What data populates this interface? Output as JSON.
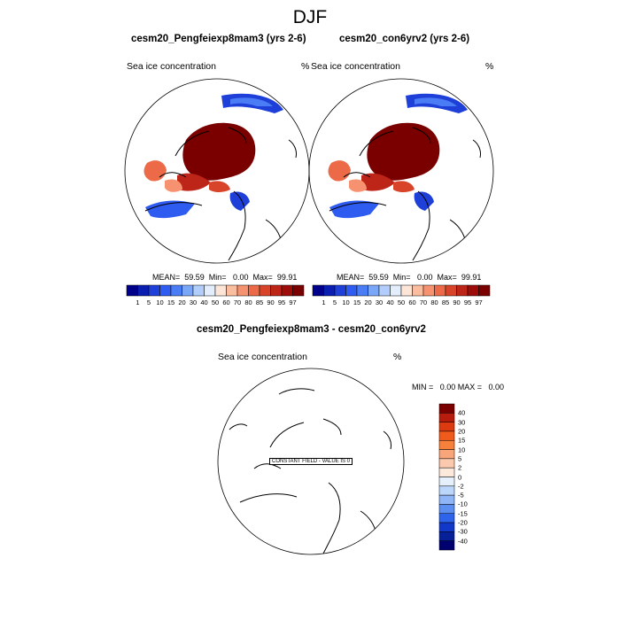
{
  "title": "DJF",
  "panels": [
    {
      "title": "cesm20_Pengfeiexp8mam3 (yrs 2-6)",
      "variable": "Sea ice concentration",
      "units": "%",
      "stats_text": "MEAN=  59.59  Min=   0.00  Max=  99.91"
    },
    {
      "title": "cesm20_con6yrv2 (yrs 2-6)",
      "variable": "Sea ice concentration",
      "units": "%",
      "stats_text": "MEAN=  59.59  Min=   0.00  Max=  99.91"
    }
  ],
  "colorbar": {
    "labels": [
      "1",
      "5",
      "10",
      "15",
      "20",
      "30",
      "40",
      "50",
      "60",
      "70",
      "80",
      "85",
      "90",
      "95",
      "97"
    ],
    "colors": [
      "#00008b",
      "#0a1fb0",
      "#1e40d8",
      "#2f5cf0",
      "#4a7df5",
      "#7aa6f8",
      "#b0cdfb",
      "#e3eefc",
      "#fde6d8",
      "#fbbd9f",
      "#f6926f",
      "#ec6a47",
      "#d8442a",
      "#bd2518",
      "#9c0d0a",
      "#7a0000"
    ]
  },
  "difference_panel": {
    "title": "cesm20_Pengfeiexp8mam3 - cesm20_con6yrv2",
    "variable": "Sea ice concentration",
    "units": "%",
    "stats_text": "MIN =   0.00 MAX =   0.00",
    "constant_field_label": "CONSTANT FIELD - VALUE IS 0",
    "colorbar_labels": [
      "40",
      "30",
      "20",
      "15",
      "10",
      "5",
      "2",
      "0",
      "-2",
      "-5",
      "-10",
      "-15",
      "-20",
      "-30",
      "-40"
    ],
    "colorbar_colors": [
      "#7a0000",
      "#b81c0c",
      "#dd3a10",
      "#f05a1c",
      "#f7803a",
      "#f9a57a",
      "#fbc9ad",
      "#fde8dc",
      "#e6f0fd",
      "#bcd5fb",
      "#8fb5f7",
      "#5c8ef2",
      "#2e63eb",
      "#1238c9",
      "#06209a",
      "#000070"
    ]
  }
}
